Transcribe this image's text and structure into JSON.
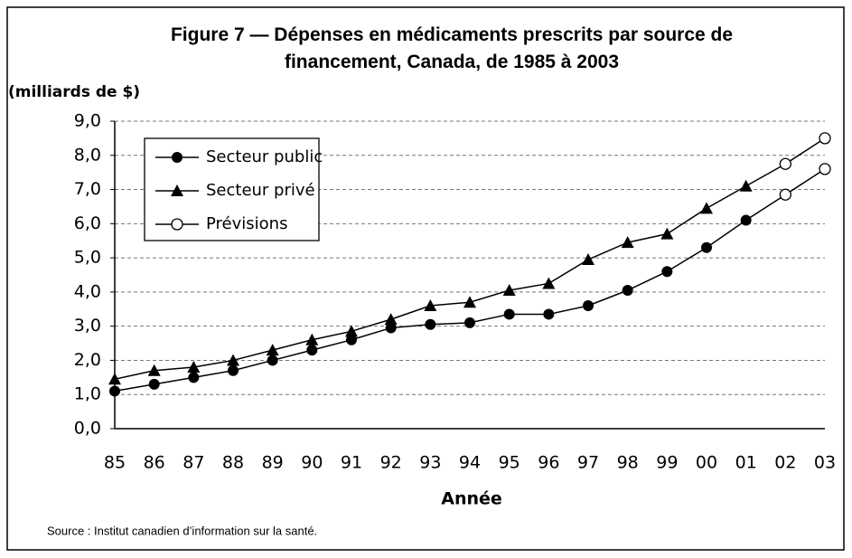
{
  "chart_data": {
    "type": "line",
    "title": "Figure 7 — Dépenses en médicaments prescrits par source de financement, Canada, de 1985 à 2003",
    "ylabel": "(milliards de $)",
    "xlabel": "Année",
    "source": "Source : Institut canadien d’information sur la santé.",
    "categories": [
      "85",
      "86",
      "87",
      "88",
      "89",
      "90",
      "91",
      "92",
      "93",
      "94",
      "95",
      "96",
      "97",
      "98",
      "99",
      "00",
      "01",
      "02",
      "03"
    ],
    "series": [
      {
        "name": "Secteur public",
        "color": "#000000",
        "marker": "circle",
        "values": [
          1.1,
          1.3,
          1.5,
          1.7,
          2.0,
          2.3,
          2.6,
          2.95,
          3.05,
          3.1,
          3.35,
          3.35,
          3.6,
          4.05,
          4.6,
          5.3,
          6.1,
          6.85,
          7.6
        ]
      },
      {
        "name": "Secteur privé",
        "color": "#000000",
        "marker": "triangle",
        "values": [
          1.45,
          1.7,
          1.8,
          2.0,
          2.3,
          2.6,
          2.85,
          3.2,
          3.6,
          3.7,
          4.05,
          4.25,
          4.95,
          5.45,
          5.7,
          6.45,
          7.1,
          7.75,
          8.5
        ]
      }
    ],
    "forecast": {
      "name": "Prévisions",
      "start": "02"
    },
    "ylim": [
      0,
      9
    ],
    "yticks": [
      {
        "value": 0,
        "label": "0,0"
      },
      {
        "value": 1,
        "label": "1,0"
      },
      {
        "value": 2,
        "label": "2,0"
      },
      {
        "value": 3,
        "label": "3,0"
      },
      {
        "value": 4,
        "label": "4,0"
      },
      {
        "value": 5,
        "label": "5,0"
      },
      {
        "value": 6,
        "label": "6,0"
      },
      {
        "value": 7,
        "label": "7,0"
      },
      {
        "value": 8,
        "label": "8,0"
      },
      {
        "value": 9,
        "label": "9,0"
      }
    ],
    "grid": true,
    "legend": "upper left"
  }
}
